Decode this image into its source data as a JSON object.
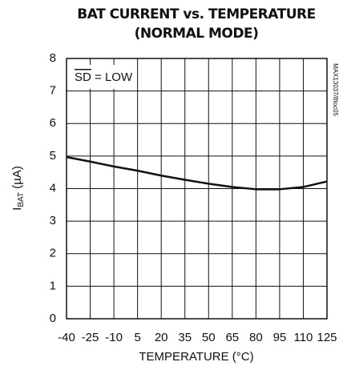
{
  "chart_data": {
    "type": "line",
    "title": [
      "BAT CURRENT vs. TEMPERATURE",
      "(NORMAL MODE)"
    ],
    "xlabel": "TEMPERATURE (°C)",
    "ylabel": {
      "main": "I",
      "sub": "BAT",
      "unit": " (µA)"
    },
    "annotation": {
      "overline": "SD",
      "text": " = LOW"
    },
    "side_note": "MAX13037/8toc05",
    "x": [
      -40,
      -25,
      -10,
      5,
      20,
      35,
      50,
      65,
      80,
      95,
      110,
      125
    ],
    "series": [
      {
        "name": "IBAT",
        "color": "#111111",
        "values": [
          4.97,
          4.83,
          4.68,
          4.55,
          4.4,
          4.27,
          4.15,
          4.05,
          3.98,
          3.98,
          4.05,
          4.22
        ]
      }
    ],
    "xlim": [
      -40,
      125
    ],
    "xticks": [
      -40,
      -25,
      -10,
      5,
      20,
      35,
      50,
      65,
      80,
      95,
      110,
      125
    ],
    "ylim": [
      0,
      8
    ],
    "yticks": [
      0,
      1,
      2,
      3,
      4,
      5,
      6,
      7,
      8
    ],
    "grid": true
  }
}
